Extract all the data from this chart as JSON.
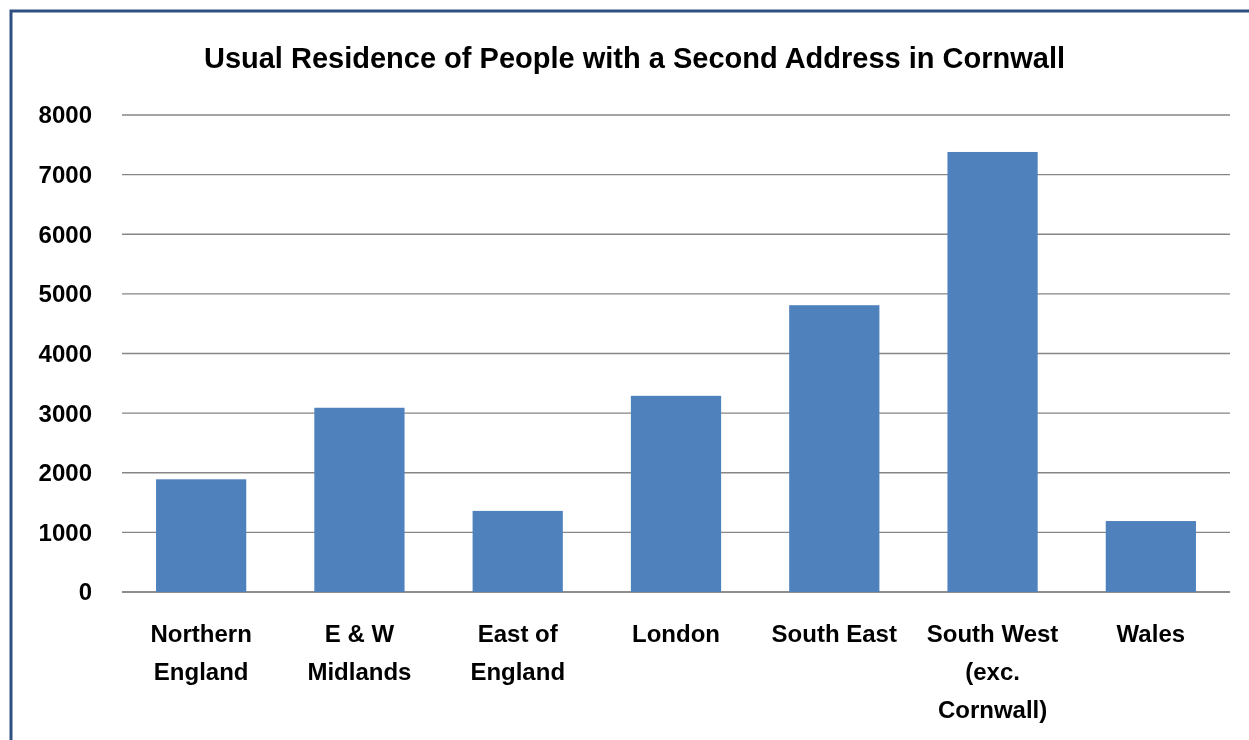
{
  "chart_data": {
    "type": "bar",
    "title": "Usual Residence of People with a Second Address in Cornwall",
    "categories": [
      "Northern England",
      "E & W Midlands",
      "East of England",
      "London",
      "South East",
      "South West (exc. Cornwall)",
      "Wales"
    ],
    "values": [
      1890,
      3090,
      1360,
      3290,
      4810,
      7380,
      1190
    ],
    "color": "#4f81bd",
    "ylim": [
      0,
      8000
    ],
    "yticks": [
      0,
      1000,
      2000,
      3000,
      4000,
      5000,
      6000,
      7000,
      8000
    ],
    "grid": "y"
  }
}
